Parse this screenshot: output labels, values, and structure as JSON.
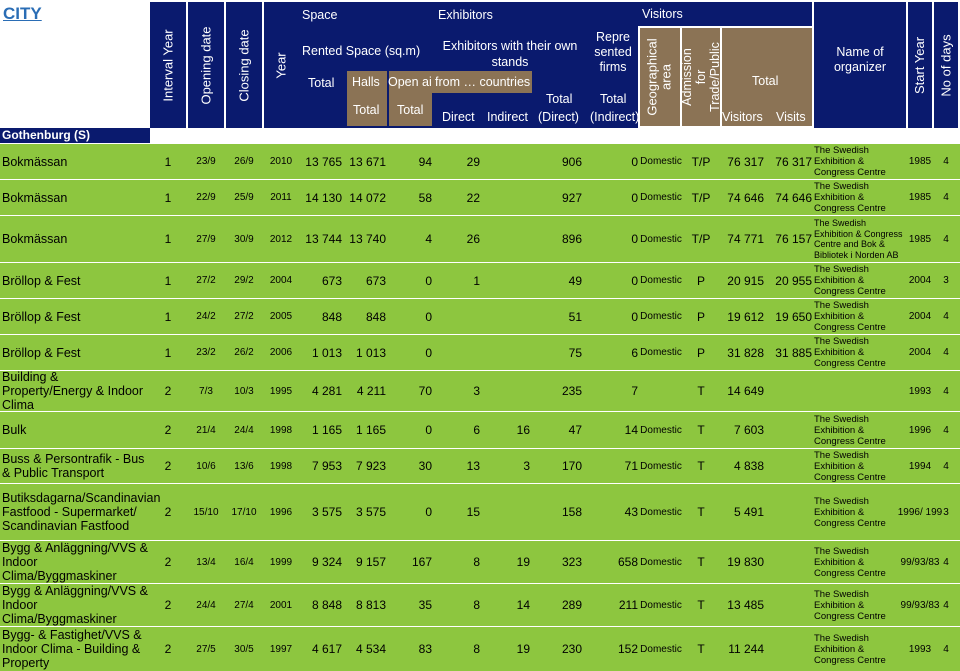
{
  "title": "CITY",
  "headers": {
    "interval_year": "Interval Year",
    "opening_date": "Opening date",
    "closing_date": "Closing date",
    "year": "Year",
    "space": "Space",
    "rented_space": "Rented Space (sq.m)",
    "space_total": "Total",
    "halls": "Halls",
    "open_air": "Open air",
    "halls_total": "Total",
    "open_air_total": "Total",
    "exhibitors": "Exhibitors",
    "exhibitors_own_stands": "Exhibitors with their own stands",
    "from_countries": "from … countries",
    "direct": "Direct",
    "indirect": "Indirect",
    "total_direct_1": "Total",
    "total_direct_2": "(Direct)",
    "represented_firms": "Repre sented firms",
    "total_indirect_1": "Total",
    "total_indirect_2": "(Indirect)",
    "visitors": "Visitors",
    "geographical_area": "Geographical area",
    "admission": "Admission for Trade/Public",
    "visitors_total": "Total",
    "visitors_label": "Visitors",
    "visits_label": "Visits",
    "name_of_organizer": "Name of organizer",
    "start_year": "Start Year",
    "no_of_days": "No of days"
  },
  "section": "Gothenburg (S)",
  "rows": [
    {
      "name": "Bokmässan",
      "interval": "1",
      "open": "23/9",
      "close": "26/9",
      "year": "2010",
      "total": "13 765",
      "halls": "13 671",
      "open_air": "94",
      "direct": "29",
      "indirect": "",
      "tot_direct": "906",
      "tot_indirect": "0",
      "geo": "Domestic",
      "adm": "T/P",
      "visitors": "76 317",
      "visits": "76 317",
      "org": "The Swedish Exhibition & Congress Centre",
      "start": "1985",
      "days": "4"
    },
    {
      "name": "Bokmässan",
      "interval": "1",
      "open": "22/9",
      "close": "25/9",
      "year": "2011",
      "total": "14 130",
      "halls": "14 072",
      "open_air": "58",
      "direct": "22",
      "indirect": "",
      "tot_direct": "927",
      "tot_indirect": "0",
      "geo": "Domestic",
      "adm": "T/P",
      "visitors": "74 646",
      "visits": "74 646",
      "org": "The Swedish Exhibition & Congress Centre",
      "start": "1985",
      "days": "4"
    },
    {
      "name": "Bokmässan",
      "interval": "1",
      "open": "27/9",
      "close": "30/9",
      "year": "2012",
      "total": "13 744",
      "halls": "13 740",
      "open_air": "4",
      "direct": "26",
      "indirect": "",
      "tot_direct": "896",
      "tot_indirect": "0",
      "geo": "Domestic",
      "adm": "T/P",
      "visitors": "74 771",
      "visits": "76 157",
      "org": "The Swedish Exhibition & Congress Centre and Bok & Bibliotek i Norden AB",
      "start": "1985",
      "days": "4"
    },
    {
      "name": "Bröllop & Fest",
      "interval": "1",
      "open": "27/2",
      "close": "29/2",
      "year": "2004",
      "total": "673",
      "halls": "673",
      "open_air": "0",
      "direct": "1",
      "indirect": "",
      "tot_direct": "49",
      "tot_indirect": "0",
      "geo": "Domestic",
      "adm": "P",
      "visitors": "20 915",
      "visits": "20 955",
      "org": "The Swedish Exhibition & Congress Centre",
      "start": "2004",
      "days": "3"
    },
    {
      "name": "Bröllop & Fest",
      "interval": "1",
      "open": "24/2",
      "close": "27/2",
      "year": "2005",
      "total": "848",
      "halls": "848",
      "open_air": "0",
      "direct": "",
      "indirect": "",
      "tot_direct": "51",
      "tot_indirect": "0",
      "geo": "Domestic",
      "adm": "P",
      "visitors": "19 612",
      "visits": "19 650",
      "org": "The Swedish Exhibition & Congress Centre",
      "start": "2004",
      "days": "4"
    },
    {
      "name": "Bröllop & Fest",
      "interval": "1",
      "open": "23/2",
      "close": "26/2",
      "year": "2006",
      "total": "1 013",
      "halls": "1 013",
      "open_air": "0",
      "direct": "",
      "indirect": "",
      "tot_direct": "75",
      "tot_indirect": "6",
      "geo": "Domestic",
      "adm": "P",
      "visitors": "31 828",
      "visits": "31 885",
      "org": "The Swedish Exhibition & Congress Centre",
      "start": "2004",
      "days": "4"
    },
    {
      "name": "Building & Property/Energy & Indoor Clima",
      "interval": "2",
      "open": "7/3",
      "close": "10/3",
      "year": "1995",
      "total": "4 281",
      "halls": "4 211",
      "open_air": "70",
      "direct": "3",
      "indirect": "",
      "tot_direct": "235",
      "tot_indirect": "7",
      "geo": "",
      "adm": "T",
      "visitors": "14 649",
      "visits": "",
      "org": "",
      "start": "1993",
      "days": "4"
    },
    {
      "name": "Bulk",
      "interval": "2",
      "open": "21/4",
      "close": "24/4",
      "year": "1998",
      "total": "1 165",
      "halls": "1 165",
      "open_air": "0",
      "direct": "6",
      "indirect": "16",
      "tot_direct": "47",
      "tot_indirect": "14",
      "geo": "Domestic",
      "adm": "T",
      "visitors": "7 603",
      "visits": "",
      "org": "The Swedish Exhibition & Congress Centre",
      "start": "1996",
      "days": "4"
    },
    {
      "name": "Buss & Persontrafik - Bus & Public Transport",
      "interval": "2",
      "open": "10/6",
      "close": "13/6",
      "year": "1998",
      "total": "7 953",
      "halls": "7 923",
      "open_air": "30",
      "direct": "13",
      "indirect": "3",
      "tot_direct": "170",
      "tot_indirect": "71",
      "geo": "Domestic",
      "adm": "T",
      "visitors": "4 838",
      "visits": "",
      "org": "The Swedish Exhibition & Congress Centre",
      "start": "1994",
      "days": "4"
    },
    {
      "name": "Butiksdagarna/Scandinavian Fastfood - Supermarket/ Scandinavian Fastfood",
      "interval": "2",
      "open": "15/10",
      "close": "17/10",
      "year": "1996",
      "total": "3 575",
      "halls": "3 575",
      "open_air": "0",
      "direct": "15",
      "indirect": "",
      "tot_direct": "158",
      "tot_indirect": "43",
      "geo": "Domestic",
      "adm": "T",
      "visitors": "5 491",
      "visits": "",
      "org": "The Swedish Exhibition & Congress Centre",
      "start": "1996/ 199",
      "days": "3"
    },
    {
      "name": "Bygg & Anläggning/VVS & Indoor Clima/Byggmaskiner",
      "interval": "2",
      "open": "13/4",
      "close": "16/4",
      "year": "1999",
      "total": "9 324",
      "halls": "9 157",
      "open_air": "167",
      "direct": "8",
      "indirect": "19",
      "tot_direct": "323",
      "tot_indirect": "658",
      "geo": "Domestic",
      "adm": "T",
      "visitors": "19 830",
      "visits": "",
      "org": "The Swedish Exhibition & Congress Centre",
      "start": "99/93/83",
      "days": "4"
    },
    {
      "name": "Bygg & Anläggning/VVS & Indoor Clima/Byggmaskiner",
      "interval": "2",
      "open": "24/4",
      "close": "27/4",
      "year": "2001",
      "total": "8 848",
      "halls": "8 813",
      "open_air": "35",
      "direct": "8",
      "indirect": "14",
      "tot_direct": "289",
      "tot_indirect": "211",
      "geo": "Domestic",
      "adm": "T",
      "visitors": "13 485",
      "visits": "",
      "org": "The Swedish Exhibition & Congress Centre",
      "start": "99/93/83",
      "days": "4"
    },
    {
      "name": "Bygg- & Fastighet/VVS & Indoor Clima - Building & Property",
      "interval": "2",
      "open": "27/5",
      "close": "30/5",
      "year": "1997",
      "total": "4 617",
      "halls": "4 534",
      "open_air": "83",
      "direct": "8",
      "indirect": "19",
      "tot_direct": "230",
      "tot_indirect": "152",
      "geo": "Domestic",
      "adm": "T",
      "visitors": "11 244",
      "visits": "",
      "org": "The Swedish Exhibition & Congress Centre",
      "start": "1993",
      "days": "4"
    }
  ]
}
